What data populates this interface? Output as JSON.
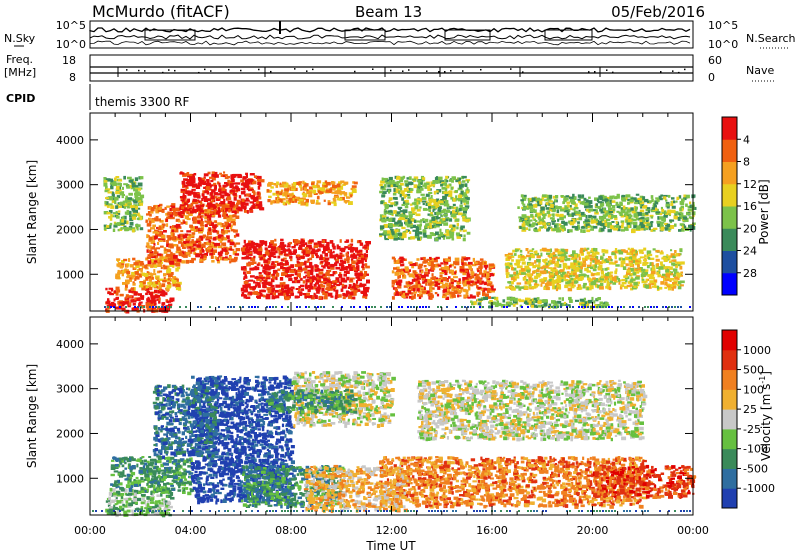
{
  "header": {
    "station": "McMurdo (fitACF)",
    "beam": "Beam 13",
    "date": "05/Feb/2016"
  },
  "noise_panel": {
    "left_label": "N.Sky",
    "left_ticks": [
      "10^5",
      "10^0"
    ],
    "right_label": "N.Search",
    "right_ticks": [
      "10^5",
      "10^0"
    ]
  },
  "freq_panel": {
    "left_label_line1": "Freq.",
    "left_label_line2": "[MHz]",
    "left_ticks": [
      "18",
      "8"
    ],
    "right_label": "Nave",
    "right_ticks": [
      "60",
      "0"
    ]
  },
  "cpid_panel": {
    "label": "CPID",
    "program": "themis 3300 RF"
  },
  "x_axis": {
    "title": "Time UT",
    "ticks": [
      "00:00",
      "04:00",
      "08:00",
      "12:00",
      "16:00",
      "20:00",
      "00:00"
    ]
  },
  "power_panel": {
    "ylabel": "Slant Range [km]",
    "yticks": [
      "1000",
      "2000",
      "3000",
      "4000"
    ],
    "colorbar_label": "Power [dB]",
    "colorbar_ticks": [
      "4",
      "8",
      "12",
      "16",
      "20",
      "24",
      "28"
    ],
    "colors": [
      "#0000ff",
      "#1e4fa0",
      "#3a8a5a",
      "#7cc24a",
      "#e8d020",
      "#f5a020",
      "#f06010",
      "#e81010"
    ]
  },
  "velocity_panel": {
    "ylabel": "Slant Range [km]",
    "yticks": [
      "1000",
      "2000",
      "3000",
      "4000"
    ],
    "colorbar_label": "Velocity [m s^-1]",
    "colorbar_ticks": [
      "1000",
      "500",
      "100",
      "25",
      "-25",
      "-100",
      "-500",
      "-1000"
    ],
    "colors": [
      "#2040b0",
      "#2f6ea0",
      "#3a8a5a",
      "#66c040",
      "#c8c8c8",
      "#f0b030",
      "#f08020",
      "#e03010",
      "#e00000"
    ]
  },
  "chart_data": {
    "type": "heatmap",
    "x_range_hours": [
      0,
      24
    ],
    "y_range_km": [
      180,
      4600
    ],
    "power_blobs": [
      {
        "t0": 0.6,
        "t1": 3.2,
        "r0": 200,
        "r1": 700,
        "level": 7
      },
      {
        "t0": 1.0,
        "t1": 3.5,
        "r0": 700,
        "r1": 1400,
        "level": 5
      },
      {
        "t0": 2.2,
        "t1": 5.8,
        "r0": 1300,
        "r1": 2600,
        "level": 6
      },
      {
        "t0": 3.5,
        "t1": 6.8,
        "r0": 2400,
        "r1": 3300,
        "level": 7
      },
      {
        "t0": 6.0,
        "t1": 11.0,
        "r0": 500,
        "r1": 1800,
        "level": 7
      },
      {
        "t0": 7.0,
        "t1": 10.5,
        "r0": 2600,
        "r1": 3100,
        "level": 5
      },
      {
        "t0": 12.0,
        "t1": 16.0,
        "r0": 500,
        "r1": 1400,
        "level": 6
      },
      {
        "t0": 15.0,
        "t1": 20.5,
        "r0": 300,
        "r1": 500,
        "level": 3
      },
      {
        "t0": 16.5,
        "t1": 23.5,
        "r0": 700,
        "r1": 1600,
        "level": 4
      },
      {
        "t0": 17.0,
        "t1": 24.0,
        "r0": 2000,
        "r1": 2800,
        "level": 3
      },
      {
        "t0": 0.5,
        "t1": 2.0,
        "r0": 2000,
        "r1": 3200,
        "level": 3
      },
      {
        "t0": 11.5,
        "t1": 15.0,
        "r0": 1800,
        "r1": 3200,
        "level": 3
      }
    ],
    "velocity_blobs": [
      {
        "t0": 0.6,
        "t1": 3.2,
        "r0": 200,
        "r1": 800,
        "level": 3
      },
      {
        "t0": 0.8,
        "t1": 4.0,
        "r0": 700,
        "r1": 1500,
        "level": 2
      },
      {
        "t0": 4.0,
        "t1": 8.0,
        "r0": 500,
        "r1": 3300,
        "level": 0
      },
      {
        "t0": 2.5,
        "t1": 5.0,
        "r0": 1500,
        "r1": 3100,
        "level": 1
      },
      {
        "t0": 6.0,
        "t1": 10.0,
        "r0": 400,
        "r1": 1300,
        "level": 2
      },
      {
        "t0": 8.0,
        "t1": 12.0,
        "r0": 2200,
        "r1": 3400,
        "level": 4
      },
      {
        "t0": 11.5,
        "t1": 22.0,
        "r0": 400,
        "r1": 1500,
        "level": 6
      },
      {
        "t0": 8.5,
        "t1": 12.5,
        "r0": 300,
        "r1": 1300,
        "level": 5
      },
      {
        "t0": 13.0,
        "t1": 22.0,
        "r0": 1900,
        "r1": 3200,
        "level": 4
      },
      {
        "t0": 20.0,
        "t1": 24.0,
        "r0": 600,
        "r1": 1300,
        "level": 7
      },
      {
        "t0": 7.0,
        "t1": 10.5,
        "r0": 2500,
        "r1": 3000,
        "level": 2
      }
    ]
  }
}
